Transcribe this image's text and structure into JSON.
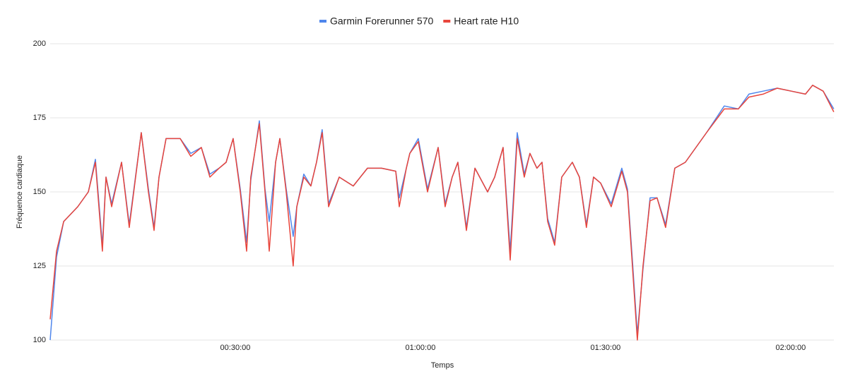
{
  "chart_data": {
    "type": "line",
    "x_label": "Temps",
    "y_label": "Fréquence cardiaque",
    "x": [
      0,
      62,
      131,
      268,
      371,
      440,
      508,
      543,
      598,
      694,
      769,
      886,
      955,
      1010,
      1058,
      1127,
      1264,
      1367,
      1470,
      1553,
      1642,
      1711,
      1779,
      1848,
      1910,
      1951,
      2034,
      2089,
      2130,
      2192,
      2233,
      2295,
      2363,
      2398,
      2466,
      2535,
      2590,
      2645,
      2707,
      2810,
      2947,
      3085,
      3222,
      3360,
      3394,
      3463,
      3497,
      3579,
      3669,
      3772,
      3840,
      3909,
      3964,
      4047,
      4130,
      4253,
      4322,
      4404,
      4473,
      4541,
      4610,
      4665,
      4733,
      4782,
      4837,
      4905,
      4974,
      5077,
      5146,
      5214,
      5283,
      5352,
      5455,
      5558,
      5613,
      5661,
      5709,
      5764,
      5833,
      5901,
      5984,
      6073,
      6176,
      6279,
      6382,
      6554,
      6691,
      6794,
      6932,
      7069,
      7207,
      7344,
      7413,
      7516,
      7619
    ],
    "series": [
      {
        "name": "Garmin Forerunner 570",
        "color": "#4f86ec",
        "values": [
          100,
          128,
          140,
          145,
          150,
          161,
          132,
          155,
          146,
          160,
          139,
          170,
          151,
          138,
          155,
          168,
          168,
          163,
          165,
          156,
          158,
          160,
          168,
          151,
          133,
          154,
          174,
          151,
          140,
          160,
          168,
          151,
          135,
          145,
          156,
          152,
          160,
          171,
          146,
          155,
          152,
          158,
          158,
          157,
          148,
          158,
          163,
          168,
          151,
          165,
          146,
          155,
          160,
          138,
          158,
          150,
          155,
          165,
          130,
          170,
          156,
          163,
          158,
          160,
          141,
          133,
          155,
          160,
          155,
          139,
          155,
          153,
          146,
          158,
          151,
          127,
          102,
          124,
          148,
          148,
          139,
          158,
          160,
          165,
          170,
          179,
          178,
          183,
          184,
          185,
          184,
          183,
          186,
          184,
          178
        ]
      },
      {
        "name": "Heart rate H10",
        "color": "#e8453c",
        "values": [
          107,
          130,
          140,
          145,
          150,
          160,
          130,
          155,
          145,
          160,
          138,
          170,
          150,
          137,
          155,
          168,
          168,
          162,
          165,
          155,
          158,
          160,
          168,
          150,
          130,
          155,
          173,
          150,
          130,
          160,
          168,
          150,
          125,
          145,
          155,
          152,
          160,
          170,
          145,
          155,
          152,
          158,
          158,
          157,
          145,
          158,
          163,
          167,
          150,
          165,
          145,
          155,
          160,
          137,
          158,
          150,
          155,
          165,
          127,
          168,
          155,
          163,
          158,
          160,
          140,
          132,
          155,
          160,
          155,
          138,
          155,
          153,
          145,
          157,
          150,
          125,
          100,
          125,
          147,
          148,
          138,
          158,
          160,
          165,
          170,
          178,
          178,
          182,
          183,
          185,
          184,
          183,
          186,
          184,
          177
        ]
      }
    ],
    "xlim": [
      0,
      7620
    ],
    "xticks": [
      {
        "value": 1800,
        "label": "00:30:00"
      },
      {
        "value": 3600,
        "label": "01:00:00"
      },
      {
        "value": 5400,
        "label": "01:30:00"
      },
      {
        "value": 7200,
        "label": "02:00:00"
      }
    ],
    "ylim": [
      100,
      200
    ],
    "yticks": [
      100,
      125,
      150,
      175,
      200
    ],
    "grid": true,
    "legend": "top"
  }
}
